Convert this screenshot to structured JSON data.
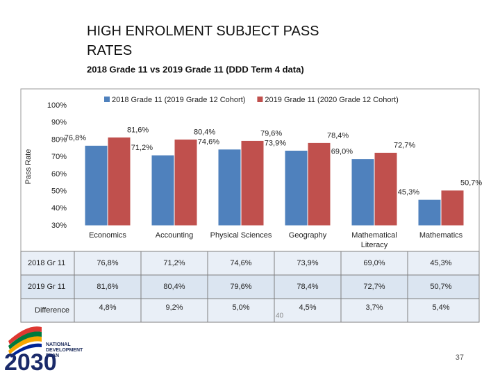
{
  "chart_data": {
    "type": "bar",
    "title": "HIGH ENROLMENT SUBJECT PASS RATES",
    "subtitle": "2018 Grade 11 vs 2019 Grade 11 (DDD Term 4 data)",
    "y_label": "Pass Rate",
    "categories": [
      "Economics",
      "Accounting",
      "Physical Sciences",
      "Geography",
      "Mathematical Literacy",
      "Mathematics"
    ],
    "series": [
      {
        "name": "2018 Grade 11 (2019 Grade 12 Cohort)",
        "color": "#4f81bd",
        "values": [
          76.8,
          71.2,
          74.6,
          73.9,
          69.0,
          45.3
        ],
        "value_labels": [
          "76,8%",
          "71,2%",
          "74,6%",
          "73,9%",
          "69,0%",
          "45,3%"
        ]
      },
      {
        "name": "2019 Grade 11 (2020 Grade 12 Cohort)",
        "color": "#c0504d",
        "values": [
          81.6,
          80.4,
          79.6,
          78.4,
          72.7,
          50.7
        ],
        "value_labels": [
          "81,6%",
          "80,4%",
          "79,6%",
          "78,4%",
          "72,7%",
          "50,7%"
        ]
      }
    ],
    "ylim": [
      30,
      100
    ],
    "yticks": [
      {
        "value": 30,
        "label": "30%"
      },
      {
        "value": 40,
        "label": "40%"
      },
      {
        "value": 50,
        "label": "50%"
      },
      {
        "value": 60,
        "label": "60%"
      },
      {
        "value": 70,
        "label": "70%"
      },
      {
        "value": 80,
        "label": "80%"
      },
      {
        "value": 90,
        "label": "90%"
      },
      {
        "value": 100,
        "label": "100%"
      }
    ],
    "legend": "top"
  },
  "table": {
    "row_labels": [
      "2018 Gr 11",
      "2019 Gr 11",
      "Difference"
    ],
    "difference": [
      "4,8%",
      "9,2%",
      "5,0%",
      "4,5%",
      "3,7%",
      "5,4%"
    ]
  },
  "stray_text": "40",
  "footer": {
    "logo_lines": [
      "NATIONAL",
      "DEVELOPMENT",
      "PLAN"
    ],
    "logo_year": "2030",
    "page_number": "37"
  }
}
